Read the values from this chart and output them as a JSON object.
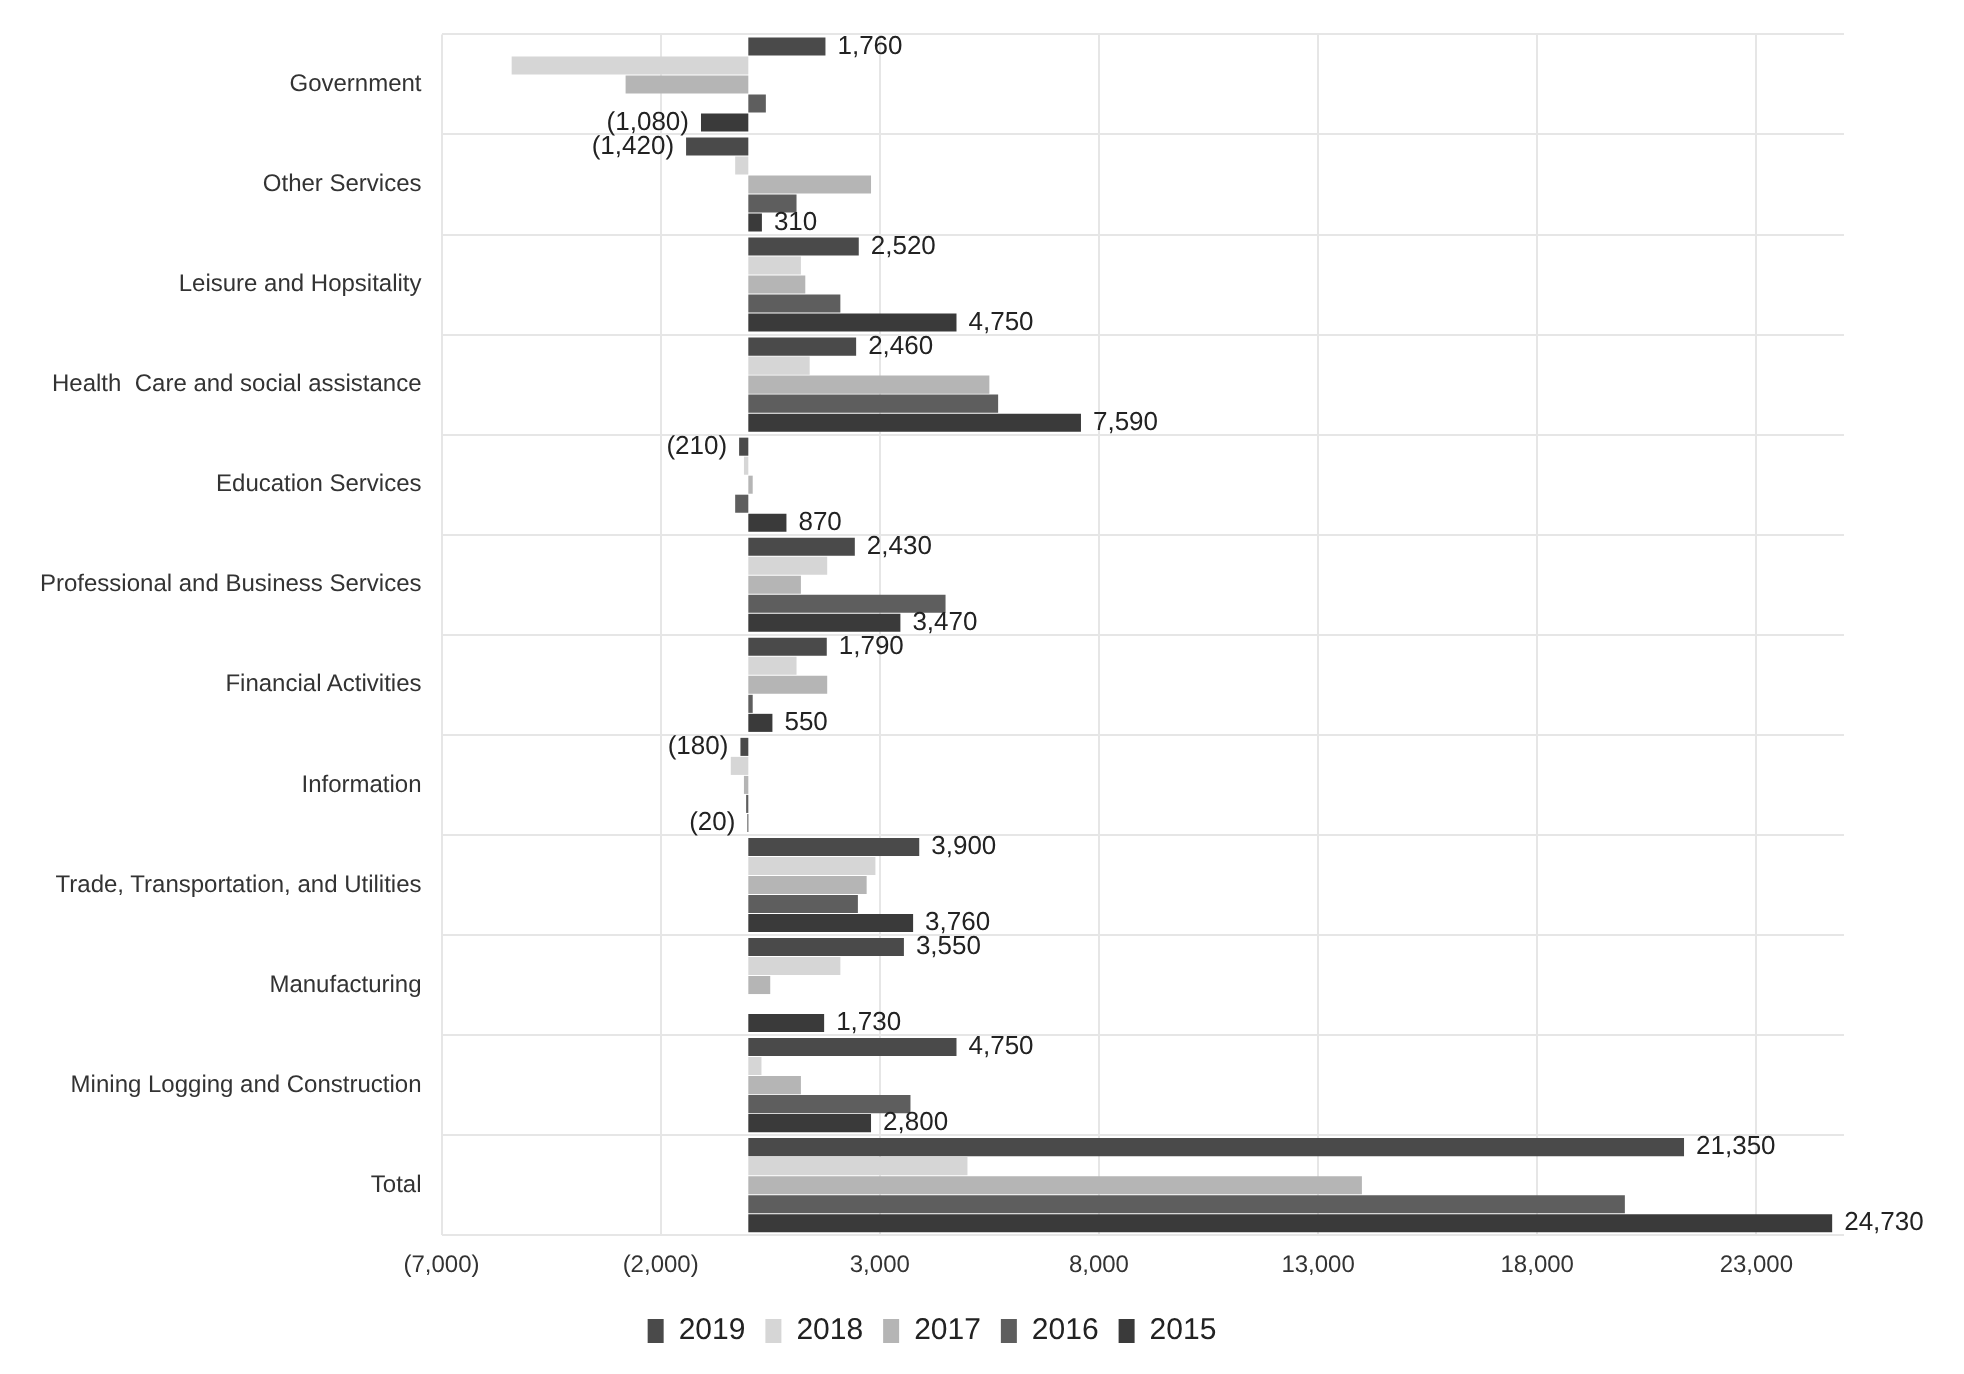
{
  "chart_data": {
    "type": "bar",
    "orientation": "horizontal",
    "categories": [
      "Government",
      "Other Services",
      "Leisure and Hopsitality",
      "Health  Care and social assistance",
      "Education Services",
      "Professional and Business Services",
      "Financial Activities",
      "Information",
      "Trade, Transportation, and Utilities",
      "Manufacturing",
      "Mining Logging and Construction",
      "Total"
    ],
    "series": [
      {
        "name": "2019",
        "color": "#4a4a4a",
        "values": [
          1760,
          -1420,
          2520,
          2460,
          -210,
          2430,
          1790,
          -180,
          3900,
          3550,
          4750,
          21350
        ],
        "value_labels": [
          "1,760",
          "(1,420)",
          "2,520",
          "2,460",
          "(210)",
          "2,430",
          "1,790",
          "(180)",
          "3,900",
          "3,550",
          "4,750",
          "21,350"
        ]
      },
      {
        "name": "2018",
        "color": "#d6d6d6",
        "values": [
          -5400,
          -300,
          1200,
          1400,
          -100,
          1800,
          1100,
          -400,
          2900,
          2100,
          300,
          5000
        ]
      },
      {
        "name": "2017",
        "color": "#b5b5b5",
        "values": [
          -2800,
          2800,
          1300,
          5500,
          100,
          1200,
          1800,
          -100,
          2700,
          500,
          1200,
          14000
        ]
      },
      {
        "name": "2016",
        "color": "#5e5e5e",
        "values": [
          400,
          1100,
          2100,
          5700,
          -300,
          4500,
          100,
          -50,
          2500,
          0,
          3700,
          20000
        ]
      },
      {
        "name": "2015",
        "color": "#3a3a3a",
        "values": [
          -1080,
          310,
          4750,
          7590,
          870,
          3470,
          550,
          -20,
          3760,
          1730,
          2800,
          24730
        ],
        "value_labels": [
          "(1,080)",
          "310",
          "4,750",
          "7,590",
          "870",
          "3,470",
          "550",
          "(20)",
          "3,760",
          "1,730",
          "2,800",
          "24,730"
        ]
      }
    ],
    "xlim": [
      -7000,
      25000
    ],
    "xticks": [
      {
        "value": -7000,
        "label": "(7,000)"
      },
      {
        "value": -2000,
        "label": "(2,000)"
      },
      {
        "value": 3000,
        "label": "3,000"
      },
      {
        "value": 8000,
        "label": "8,000"
      },
      {
        "value": 13000,
        "label": "13,000"
      },
      {
        "value": 18000,
        "label": "18,000"
      },
      {
        "value": 23000,
        "label": "23,000"
      }
    ],
    "grid": true,
    "legend": "bottom"
  }
}
